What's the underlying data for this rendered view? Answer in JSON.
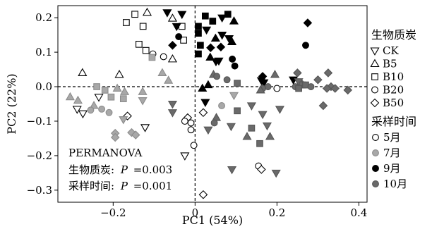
{
  "chart_data": {
    "type": "scatter",
    "xlabel": "PC1 (54%)",
    "ylabel": "PC2 (22%)",
    "xlim": [
      -0.335,
      0.42
    ],
    "ylim": [
      -0.335,
      0.235
    ],
    "xticks": [
      -0.2,
      0,
      0.2,
      0.4
    ],
    "xtick_labels": [
      "−0.2",
      "0",
      "0.2",
      "0.4"
    ],
    "yticks": [
      -0.3,
      -0.2,
      -0.1,
      0.0,
      0.1,
      0.2
    ],
    "ytick_labels": [
      "−0.3",
      "−0.2",
      "−0.1",
      "0.0",
      "0.1",
      "0.2"
    ],
    "reference_lines": {
      "x": 0,
      "y": 0,
      "style": "dashed"
    },
    "grid": false,
    "annotation": {
      "title": "PERMANOVA",
      "lines": [
        {
          "label": "生物质炭:",
          "stat": "P",
          "value": "=0.003"
        },
        {
          "label": "采样时间:",
          "stat": "P",
          "value": "=0.001"
        }
      ]
    },
    "legend_treatment": {
      "title": "生物质炭",
      "placement": "right",
      "items": [
        {
          "label": "CK",
          "marker": "triangle-down"
        },
        {
          "label": "B5",
          "marker": "triangle-up"
        },
        {
          "label": "B10",
          "marker": "square"
        },
        {
          "label": "B20",
          "marker": "circle"
        },
        {
          "label": "B50",
          "marker": "diamond"
        }
      ]
    },
    "legend_time": {
      "title": "采样时间",
      "placement": "right",
      "items": [
        {
          "label": "5月",
          "style": "open"
        },
        {
          "label": "7月",
          "style": "light"
        },
        {
          "label": "9月",
          "style": "black"
        },
        {
          "label": "10月",
          "style": "dark"
        }
      ]
    },
    "colors": {
      "open_fill": "#ffffff",
      "light_fill": "#a8a8a8",
      "black_fill": "#000000",
      "dark_fill": "#6a6a6a"
    },
    "points": [
      {
        "x": -0.117,
        "y": 0.215,
        "m": "triangle-up",
        "t": "open"
      },
      {
        "x": -0.147,
        "y": 0.21,
        "m": "square",
        "t": "open"
      },
      {
        "x": -0.168,
        "y": 0.186,
        "m": "square",
        "t": "open"
      },
      {
        "x": -0.127,
        "y": 0.175,
        "m": "square",
        "t": "open"
      },
      {
        "x": -0.055,
        "y": 0.198,
        "m": "triangle-up",
        "t": "open"
      },
      {
        "x": -0.032,
        "y": 0.175,
        "m": "square",
        "t": "open"
      },
      {
        "x": -0.028,
        "y": 0.135,
        "m": "square",
        "t": "open"
      },
      {
        "x": -0.137,
        "y": 0.123,
        "m": "square",
        "t": "open"
      },
      {
        "x": -0.12,
        "y": 0.105,
        "m": "square",
        "t": "open"
      },
      {
        "x": -0.103,
        "y": 0.095,
        "m": "circle",
        "t": "open"
      },
      {
        "x": -0.077,
        "y": 0.087,
        "m": "circle",
        "t": "open"
      },
      {
        "x": -0.055,
        "y": 0.08,
        "m": "triangle-up",
        "t": "open"
      },
      {
        "x": -0.275,
        "y": 0.04,
        "m": "triangle-up",
        "t": "open"
      },
      {
        "x": -0.185,
        "y": 0.035,
        "m": "triangle-up",
        "t": "open"
      },
      {
        "x": -0.235,
        "y": -0.03,
        "m": "triangle-down",
        "t": "open"
      },
      {
        "x": -0.288,
        "y": -0.065,
        "m": "triangle-down",
        "t": "open"
      },
      {
        "x": -0.274,
        "y": -0.078,
        "m": "triangle-down",
        "t": "open"
      },
      {
        "x": -0.165,
        "y": -0.085,
        "m": "diamond",
        "t": "open"
      },
      {
        "x": -0.122,
        "y": -0.118,
        "m": "triangle-down",
        "t": "open"
      },
      {
        "x": -0.01,
        "y": -0.105,
        "m": "circle",
        "t": "open"
      },
      {
        "x": -0.01,
        "y": -0.125,
        "m": "circle",
        "t": "open"
      },
      {
        "x": -0.018,
        "y": -0.09,
        "m": "diamond",
        "t": "open"
      },
      {
        "x": -0.025,
        "y": -0.1,
        "m": "circle",
        "t": "open"
      },
      {
        "x": 0.02,
        "y": -0.075,
        "m": "diamond",
        "t": "open"
      },
      {
        "x": -0.025,
        "y": -0.2,
        "m": "triangle-down",
        "t": "open"
      },
      {
        "x": -0.003,
        "y": -0.17,
        "m": "circle",
        "t": "open"
      },
      {
        "x": 0.155,
        "y": -0.23,
        "m": "circle",
        "t": "open"
      },
      {
        "x": 0.162,
        "y": -0.24,
        "m": "diamond",
        "t": "open"
      },
      {
        "x": 0.02,
        "y": -0.313,
        "m": "diamond",
        "t": "open"
      },
      {
        "x": 0.2,
        "y": -0.005,
        "m": "circle",
        "t": "open"
      },
      {
        "x": -0.305,
        "y": -0.03,
        "m": "triangle-up",
        "t": "light"
      },
      {
        "x": -0.286,
        "y": -0.04,
        "m": "triangle-up",
        "t": "light"
      },
      {
        "x": -0.247,
        "y": -0.055,
        "m": "triangle-up",
        "t": "light"
      },
      {
        "x": -0.24,
        "y": 0.0,
        "m": "square",
        "t": "light"
      },
      {
        "x": -0.22,
        "y": -0.01,
        "m": "square",
        "t": "light"
      },
      {
        "x": -0.205,
        "y": -0.03,
        "m": "square",
        "t": "light"
      },
      {
        "x": -0.255,
        "y": -0.068,
        "m": "circle",
        "t": "light"
      },
      {
        "x": -0.228,
        "y": -0.065,
        "m": "circle",
        "t": "light"
      },
      {
        "x": -0.21,
        "y": -0.075,
        "m": "circle",
        "t": "light"
      },
      {
        "x": -0.19,
        "y": -0.005,
        "m": "triangle-up",
        "t": "light"
      },
      {
        "x": -0.172,
        "y": -0.015,
        "m": "triangle-up",
        "t": "light"
      },
      {
        "x": -0.175,
        "y": -0.035,
        "m": "square",
        "t": "light"
      },
      {
        "x": -0.128,
        "y": -0.015,
        "m": "triangle-up",
        "t": "light"
      },
      {
        "x": -0.128,
        "y": -0.04,
        "m": "triangle-down",
        "t": "light"
      },
      {
        "x": -0.175,
        "y": -0.095,
        "m": "triangle-down",
        "t": "light"
      },
      {
        "x": -0.195,
        "y": -0.135,
        "m": "diamond",
        "t": "light"
      },
      {
        "x": -0.195,
        "y": -0.147,
        "m": "diamond",
        "t": "light"
      },
      {
        "x": -0.155,
        "y": -0.133,
        "m": "diamond",
        "t": "light"
      },
      {
        "x": -0.145,
        "y": -0.14,
        "m": "diamond",
        "t": "light"
      },
      {
        "x": -0.105,
        "y": 0.085,
        "m": "square",
        "t": "light"
      },
      {
        "x": -0.08,
        "y": 0.04,
        "m": "triangle-up",
        "t": "light"
      },
      {
        "x": -0.065,
        "y": 0.018,
        "m": "triangle-up",
        "t": "light"
      },
      {
        "x": 0.095,
        "y": -0.025,
        "m": "triangle-down",
        "t": "light"
      },
      {
        "x": 0.065,
        "y": -0.055,
        "m": "circle",
        "t": "light"
      },
      {
        "x": 0.043,
        "y": 0.19,
        "m": "square",
        "t": "black"
      },
      {
        "x": 0.066,
        "y": 0.2,
        "m": "triangle-down",
        "t": "black"
      },
      {
        "x": 0.08,
        "y": 0.21,
        "m": "square",
        "t": "black"
      },
      {
        "x": 0.025,
        "y": 0.205,
        "m": "square",
        "t": "black"
      },
      {
        "x": -0.068,
        "y": 0.215,
        "m": "triangle-down",
        "t": "black"
      },
      {
        "x": -0.032,
        "y": 0.21,
        "m": "triangle-down",
        "t": "black"
      },
      {
        "x": -0.045,
        "y": 0.175,
        "m": "triangle-down",
        "t": "black"
      },
      {
        "x": -0.04,
        "y": 0.145,
        "m": "circle",
        "t": "black"
      },
      {
        "x": -0.055,
        "y": 0.12,
        "m": "diamond",
        "t": "black"
      },
      {
        "x": 0.008,
        "y": 0.175,
        "m": "square",
        "t": "black"
      },
      {
        "x": 0.008,
        "y": 0.155,
        "m": "square",
        "t": "black"
      },
      {
        "x": 0.013,
        "y": 0.12,
        "m": "square",
        "t": "black"
      },
      {
        "x": 0.008,
        "y": 0.095,
        "m": "square",
        "t": "black"
      },
      {
        "x": 0.028,
        "y": 0.165,
        "m": "triangle-down",
        "t": "black"
      },
      {
        "x": 0.05,
        "y": 0.14,
        "m": "triangle-up",
        "t": "black"
      },
      {
        "x": 0.066,
        "y": 0.15,
        "m": "triangle-down",
        "t": "black"
      },
      {
        "x": 0.095,
        "y": 0.19,
        "m": "triangle-up",
        "t": "black"
      },
      {
        "x": 0.083,
        "y": 0.14,
        "m": "triangle-down",
        "t": "black"
      },
      {
        "x": 0.063,
        "y": 0.115,
        "m": "diamond",
        "t": "black"
      },
      {
        "x": 0.038,
        "y": 0.113,
        "m": "diamond",
        "t": "black"
      },
      {
        "x": 0.09,
        "y": 0.13,
        "m": "triangle-up",
        "t": "black"
      },
      {
        "x": 0.037,
        "y": 0.085,
        "m": "triangle-up",
        "t": "black"
      },
      {
        "x": 0.051,
        "y": 0.073,
        "m": "triangle-down",
        "t": "black"
      },
      {
        "x": 0.058,
        "y": 0.075,
        "m": "triangle-down",
        "t": "black"
      },
      {
        "x": 0.091,
        "y": 0.08,
        "m": "circle",
        "t": "black"
      },
      {
        "x": 0.097,
        "y": 0.06,
        "m": "circle",
        "t": "black"
      },
      {
        "x": 0.275,
        "y": 0.185,
        "m": "diamond",
        "t": "black"
      },
      {
        "x": 0.27,
        "y": 0.12,
        "m": "circle",
        "t": "black"
      },
      {
        "x": 0.165,
        "y": 0.03,
        "m": "diamond",
        "t": "black"
      },
      {
        "x": 0.162,
        "y": 0.018,
        "m": "triangle-down",
        "t": "black"
      },
      {
        "x": 0.168,
        "y": 0.012,
        "m": "triangle-down",
        "t": "black"
      },
      {
        "x": 0.24,
        "y": 0.02,
        "m": "triangle-down",
        "t": "black"
      },
      {
        "x": 0.032,
        "y": 0.005,
        "m": "triangle-up",
        "t": "black"
      },
      {
        "x": 0.018,
        "y": -0.005,
        "m": "triangle-up",
        "t": "black"
      },
      {
        "x": 0.025,
        "y": -0.045,
        "m": "triangle-down",
        "t": "black"
      },
      {
        "x": 0.045,
        "y": 0.035,
        "m": "triangle-up",
        "t": "dark"
      },
      {
        "x": 0.103,
        "y": 0.01,
        "m": "square",
        "t": "dark"
      },
      {
        "x": 0.078,
        "y": 0.02,
        "m": "circle",
        "t": "dark"
      },
      {
        "x": 0.053,
        "y": 0.03,
        "m": "circle",
        "t": "dark"
      },
      {
        "x": 0.178,
        "y": 0.0,
        "m": "circle",
        "t": "dark"
      },
      {
        "x": 0.165,
        "y": -0.005,
        "m": "circle",
        "t": "dark"
      },
      {
        "x": 0.16,
        "y": -0.01,
        "m": "triangle-up",
        "t": "dark"
      },
      {
        "x": 0.195,
        "y": 0.035,
        "m": "triangle-up",
        "t": "dark"
      },
      {
        "x": 0.245,
        "y": 0.0,
        "m": "circle",
        "t": "dark"
      },
      {
        "x": 0.25,
        "y": 0.04,
        "m": "diamond",
        "t": "dark"
      },
      {
        "x": 0.258,
        "y": 0.01,
        "m": "circle",
        "t": "dark"
      },
      {
        "x": 0.253,
        "y": 0.015,
        "m": "triangle-down",
        "t": "dark"
      },
      {
        "x": 0.262,
        "y": 0.005,
        "m": "square",
        "t": "dark"
      },
      {
        "x": 0.27,
        "y": 0.005,
        "m": "square",
        "t": "dark"
      },
      {
        "x": 0.283,
        "y": 0.0,
        "m": "circle",
        "t": "dark"
      },
      {
        "x": 0.253,
        "y": -0.005,
        "m": "square",
        "t": "dark"
      },
      {
        "x": 0.3,
        "y": 0.02,
        "m": "diamond",
        "t": "dark"
      },
      {
        "x": 0.325,
        "y": 0.04,
        "m": "diamond",
        "t": "dark"
      },
      {
        "x": 0.332,
        "y": 0.0,
        "m": "diamond",
        "t": "dark"
      },
      {
        "x": 0.342,
        "y": -0.005,
        "m": "diamond",
        "t": "dark"
      },
      {
        "x": 0.322,
        "y": -0.005,
        "m": "diamond",
        "t": "dark"
      },
      {
        "x": 0.373,
        "y": -0.01,
        "m": "diamond",
        "t": "dark"
      },
      {
        "x": 0.313,
        "y": -0.055,
        "m": "diamond",
        "t": "dark"
      },
      {
        "x": 0.207,
        "y": -0.065,
        "m": "triangle-down",
        "t": "dark"
      },
      {
        "x": 0.165,
        "y": -0.08,
        "m": "triangle-down",
        "t": "dark"
      },
      {
        "x": 0.138,
        "y": -0.055,
        "m": "triangle-down",
        "t": "dark"
      },
      {
        "x": 0.103,
        "y": -0.07,
        "m": "square",
        "t": "dark"
      },
      {
        "x": 0.088,
        "y": -0.115,
        "m": "triangle-down",
        "t": "dark"
      },
      {
        "x": 0.052,
        "y": -0.09,
        "m": "triangle-up",
        "t": "dark"
      },
      {
        "x": 0.032,
        "y": -0.125,
        "m": "triangle-down",
        "t": "dark"
      },
      {
        "x": 0.047,
        "y": -0.105,
        "m": "circle",
        "t": "dark"
      },
      {
        "x": 0.176,
        "y": -0.113,
        "m": "triangle-down",
        "t": "dark"
      },
      {
        "x": 0.138,
        "y": -0.12,
        "m": "square",
        "t": "dark"
      },
      {
        "x": 0.127,
        "y": -0.145,
        "m": "triangle-up",
        "t": "dark"
      },
      {
        "x": 0.183,
        "y": -0.145,
        "m": "triangle-up",
        "t": "dark"
      },
      {
        "x": 0.158,
        "y": -0.165,
        "m": "square",
        "t": "dark"
      },
      {
        "x": 0.09,
        "y": -0.24,
        "m": "triangle-down",
        "t": "dark"
      },
      {
        "x": 0.198,
        "y": -0.25,
        "m": "triangle-down",
        "t": "dark"
      },
      {
        "x": -0.055,
        "y": -0.05,
        "m": "triangle-down",
        "t": "dark"
      },
      {
        "x": -0.055,
        "y": -0.075,
        "m": "triangle-down",
        "t": "dark"
      }
    ]
  }
}
